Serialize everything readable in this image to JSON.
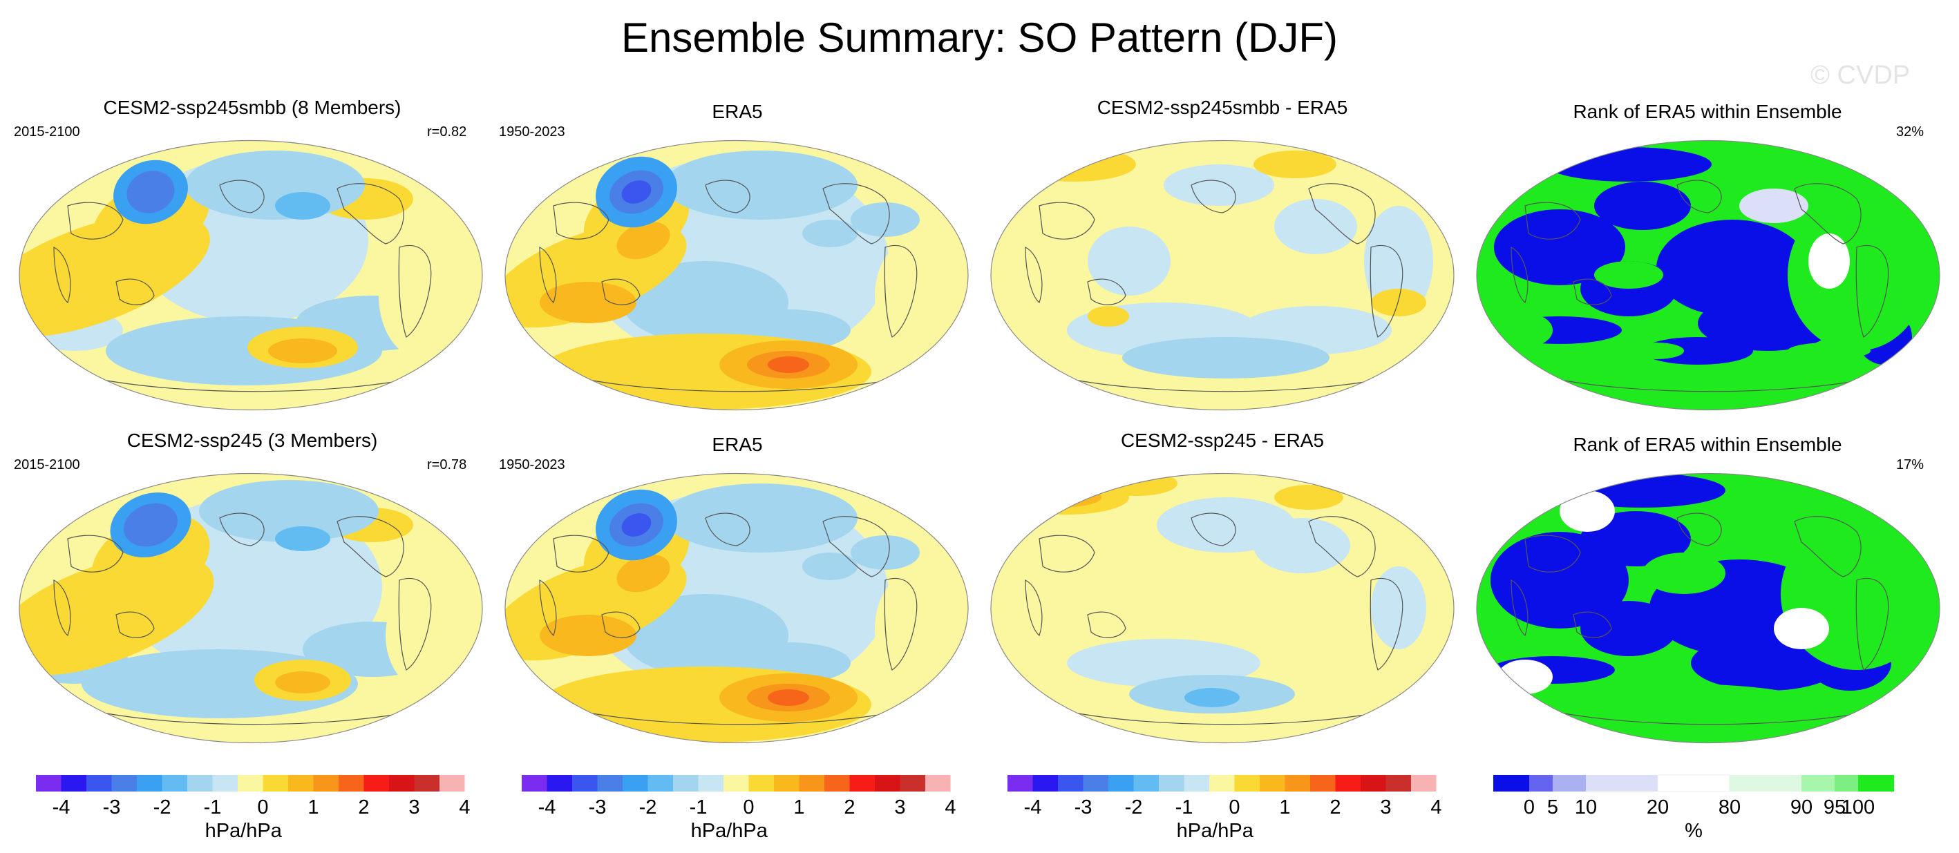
{
  "title": "Ensemble Summary: SO Pattern (DJF)",
  "watermark": "© CVDP",
  "colors": {
    "diverging": [
      "#7a2cf0",
      "#2b18f0",
      "#3b55ef",
      "#4a7fe8",
      "#3aa0f2",
      "#62bcf2",
      "#a3d5ee",
      "#c7e5f2",
      "#fbf6a0",
      "#fbd934",
      "#f9b81e",
      "#f7961a",
      "#f7651a",
      "#f81c18",
      "#d91416",
      "#c9302c",
      "#f8b2b2"
    ],
    "rank": [
      "#0a0fe8",
      "#6464f0",
      "#aab0f0",
      "#dcdff8",
      "#ffffff",
      "#dff8e2",
      "#a8f5ac",
      "#7cef82",
      "#1eea1e"
    ],
    "land_line": "#555555"
  },
  "panels": [
    {
      "id": "r1c1",
      "title": "CESM2-ssp245smbb (8 Members)",
      "left": "2015-2100",
      "right": "r=0.82",
      "kind": "field",
      "pattern": "model_a"
    },
    {
      "id": "r1c2",
      "title": "ERA5",
      "left": "1950-2023",
      "right": "",
      "kind": "field",
      "pattern": "obs"
    },
    {
      "id": "r1c3",
      "title": "CESM2-ssp245smbb - ERA5",
      "left": "",
      "right": "",
      "kind": "diff",
      "pattern": "diff_a"
    },
    {
      "id": "r1c4",
      "title": "Rank of ERA5 within Ensemble",
      "left": "",
      "right": "32%",
      "kind": "rank",
      "pattern": "rank_a"
    },
    {
      "id": "r2c1",
      "title": "CESM2-ssp245 (3 Members)",
      "left": "2015-2100",
      "right": "r=0.78",
      "kind": "field",
      "pattern": "model_b"
    },
    {
      "id": "r2c2",
      "title": "ERA5",
      "left": "1950-2023",
      "right": "",
      "kind": "field",
      "pattern": "obs"
    },
    {
      "id": "r2c3",
      "title": "CESM2-ssp245 - ERA5",
      "left": "",
      "right": "",
      "kind": "diff",
      "pattern": "diff_b"
    },
    {
      "id": "r2c4",
      "title": "Rank of ERA5 within Ensemble",
      "left": "",
      "right": "17%",
      "kind": "rank",
      "pattern": "rank_b"
    }
  ],
  "chart_data": [
    {
      "type": "heatmap",
      "title": "CESM2-ssp245smbb (8 Members)",
      "period": "2015-2100",
      "pattern_correlation": 0.82,
      "units": "hPa/hPa",
      "range": [
        -4,
        4
      ]
    },
    {
      "type": "heatmap",
      "title": "ERA5",
      "period": "1950-2023",
      "units": "hPa/hPa",
      "range": [
        -4,
        4
      ]
    },
    {
      "type": "heatmap",
      "title": "CESM2-ssp245smbb - ERA5",
      "units": "hPa/hPa",
      "range": [
        -4,
        4
      ]
    },
    {
      "type": "heatmap",
      "title": "Rank of ERA5 within Ensemble",
      "summary": "32%",
      "units": "%",
      "range": [
        0,
        100
      ]
    },
    {
      "type": "heatmap",
      "title": "CESM2-ssp245 (3 Members)",
      "period": "2015-2100",
      "pattern_correlation": 0.78,
      "units": "hPa/hPa",
      "range": [
        -4,
        4
      ]
    },
    {
      "type": "heatmap",
      "title": "ERA5",
      "period": "1950-2023",
      "units": "hPa/hPa",
      "range": [
        -4,
        4
      ]
    },
    {
      "type": "heatmap",
      "title": "CESM2-ssp245 - ERA5",
      "units": "hPa/hPa",
      "range": [
        -4,
        4
      ]
    },
    {
      "type": "heatmap",
      "title": "Rank of ERA5 within Ensemble",
      "summary": "17%",
      "units": "%",
      "range": [
        0,
        100
      ]
    }
  ],
  "colorbars": [
    {
      "id": "cb1",
      "kind": "diverging",
      "ticks": [
        "-4",
        "-3",
        "-2",
        "-1",
        "0",
        "1",
        "2",
        "3",
        "4"
      ],
      "unit": "hPa/hPa"
    },
    {
      "id": "cb2",
      "kind": "diverging",
      "ticks": [
        "-4",
        "-3",
        "-2",
        "-1",
        "0",
        "1",
        "2",
        "3",
        "4"
      ],
      "unit": "hPa/hPa"
    },
    {
      "id": "cb3",
      "kind": "diverging",
      "ticks": [
        "-4",
        "-3",
        "-2",
        "-1",
        "0",
        "1",
        "2",
        "3",
        "4"
      ],
      "unit": "hPa/hPa"
    },
    {
      "id": "cb4",
      "kind": "rank",
      "ticks": [
        "0",
        "5",
        "10",
        "20",
        "80",
        "90",
        "95",
        "100"
      ],
      "unit": "%"
    }
  ]
}
